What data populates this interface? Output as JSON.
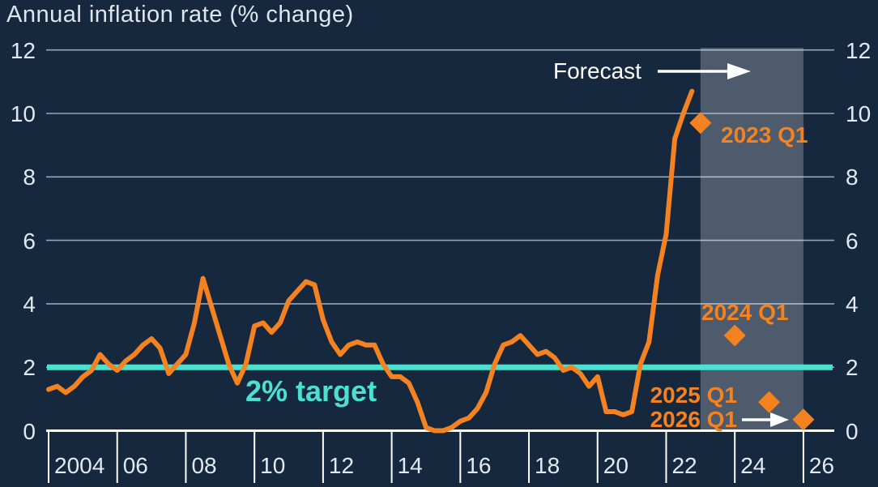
{
  "title": "Annual inflation rate (% change)",
  "annotations": {
    "forecast_label": "Forecast",
    "target_label": "2% target"
  },
  "colors": {
    "background": "#16283E",
    "line": "#F58220",
    "target_line": "#4BE0D2",
    "grid": "#93A5B6",
    "axis": "#FFFFFF",
    "forecast_band": "rgba(255,255,255,0.24)",
    "text": "#E3E9F0",
    "annotation_text": "#FFFFFF",
    "forecast_point": "#F58220"
  },
  "chart_data": {
    "type": "line",
    "title": "Annual inflation rate (% change)",
    "xlabel": "",
    "ylabel": "Annual inflation rate (% change)",
    "ylim": [
      0,
      12
    ],
    "yticks": [
      12,
      10,
      8,
      6,
      4,
      2,
      0
    ],
    "xlim": [
      2003.9,
      2026.9
    ],
    "xticks": {
      "years": [
        2004,
        2006,
        2008,
        2010,
        2012,
        2014,
        2016,
        2018,
        2020,
        2022,
        2024,
        2026
      ],
      "labels": [
        "2004",
        "06",
        "08",
        "10",
        "12",
        "14",
        "16",
        "18",
        "20",
        "22",
        "24",
        "26"
      ]
    },
    "grid": "horizontal",
    "target_value": 2,
    "forecast_band": {
      "start": 2023.0,
      "end": 2026.0
    },
    "series": [
      {
        "name": "line_series",
        "frequency": "quarterly",
        "start_year": 2004,
        "values": [
          1.3,
          1.4,
          1.2,
          1.4,
          1.7,
          1.9,
          2.4,
          2.1,
          1.9,
          2.2,
          2.4,
          2.7,
          2.9,
          2.6,
          1.8,
          2.1,
          2.4,
          3.4,
          4.8,
          3.9,
          3.0,
          2.1,
          1.5,
          2.1,
          3.3,
          3.4,
          3.1,
          3.4,
          4.1,
          4.4,
          4.7,
          4.6,
          3.5,
          2.8,
          2.4,
          2.7,
          2.8,
          2.7,
          2.7,
          2.1,
          1.7,
          1.7,
          1.5,
          0.9,
          0.1,
          0.0,
          0.0,
          0.1,
          0.3,
          0.4,
          0.7,
          1.2,
          2.1,
          2.7,
          2.8,
          3.0,
          2.7,
          2.4,
          2.5,
          2.3,
          1.9,
          2.0,
          1.8,
          1.4,
          1.7,
          0.6,
          0.6,
          0.5,
          0.6,
          2.1,
          2.8,
          4.9,
          6.2,
          9.2,
          10.0,
          10.7
        ]
      }
    ],
    "forecast_points": [
      {
        "label": "2023 Q1",
        "x": 2023.0,
        "y": 9.7
      },
      {
        "label": "2024 Q1",
        "x": 2024.0,
        "y": 3.0
      },
      {
        "label": "2025 Q1",
        "x": 2025.0,
        "y": 0.9
      },
      {
        "label": "2026 Q1",
        "x": 2026.0,
        "y": 0.35
      }
    ]
  }
}
